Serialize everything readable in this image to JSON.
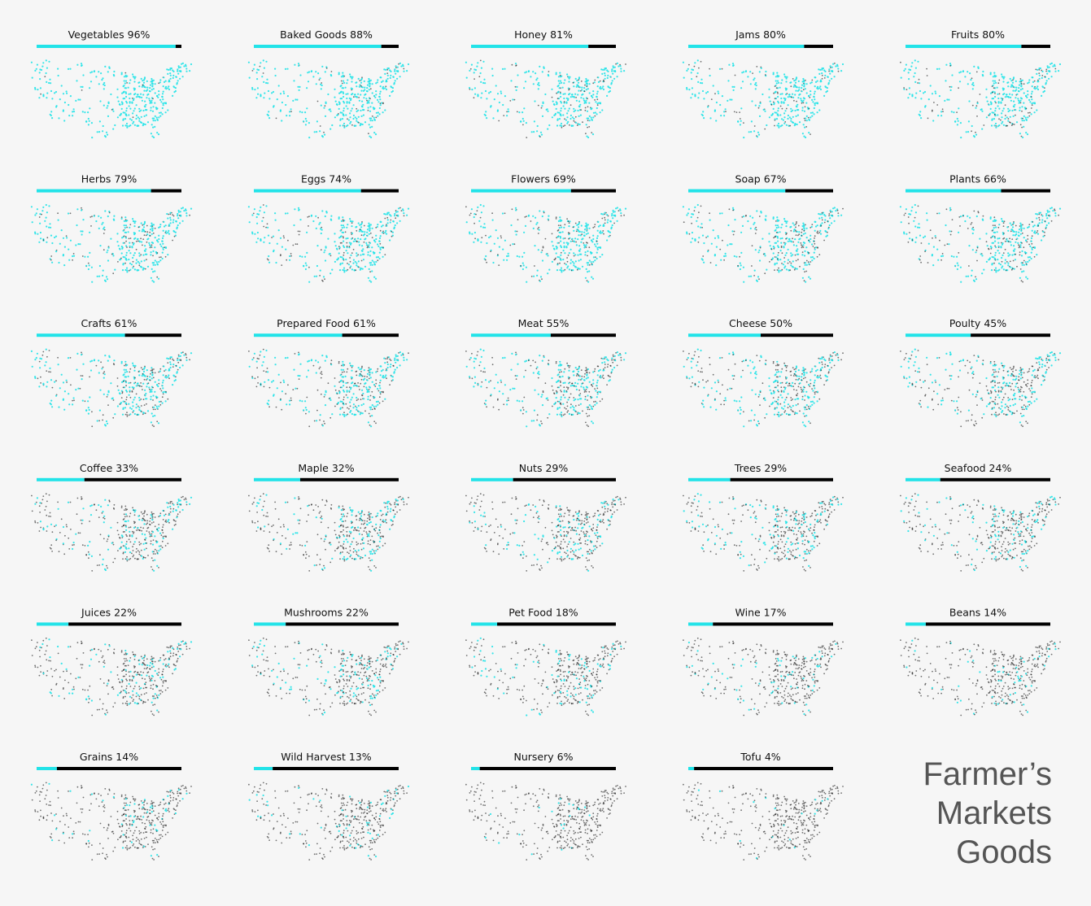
{
  "chart_data": {
    "type": "small-multiples",
    "title": [
      "Farmer’s",
      "Markets",
      "Goods"
    ],
    "categories": [
      "Vegetables",
      "Baked Goods",
      "Honey",
      "Jams",
      "Fruits",
      "Herbs",
      "Eggs",
      "Flowers",
      "Soap",
      "Plants",
      "Crafts",
      "Prepared Food",
      "Meat",
      "Cheese",
      "Poulty",
      "Coffee",
      "Maple",
      "Nuts",
      "Trees",
      "Seafood",
      "Juices",
      "Mushrooms",
      "Pet Food",
      "Wine",
      "Beans",
      "Grains",
      "Wild Harvest",
      "Nursery",
      "Tofu"
    ],
    "values": [
      96,
      88,
      81,
      80,
      80,
      79,
      74,
      69,
      67,
      66,
      61,
      61,
      55,
      50,
      45,
      33,
      32,
      29,
      29,
      24,
      22,
      22,
      18,
      17,
      14,
      14,
      13,
      6,
      4
    ],
    "value_labels": [
      "96%",
      "88%",
      "81%",
      "80%",
      "80%",
      "79%",
      "74%",
      "69%",
      "67%",
      "66%",
      "61%",
      "61%",
      "55%",
      "50%",
      "45%",
      "33%",
      "32%",
      "29%",
      "29%",
      "24%",
      "22%",
      "22%",
      "18%",
      "17%",
      "14%",
      "14%",
      "13%",
      "6%",
      "4%"
    ],
    "xlim": [
      0,
      100
    ],
    "color": "#22e3e8",
    "rest_color": "#000000"
  }
}
